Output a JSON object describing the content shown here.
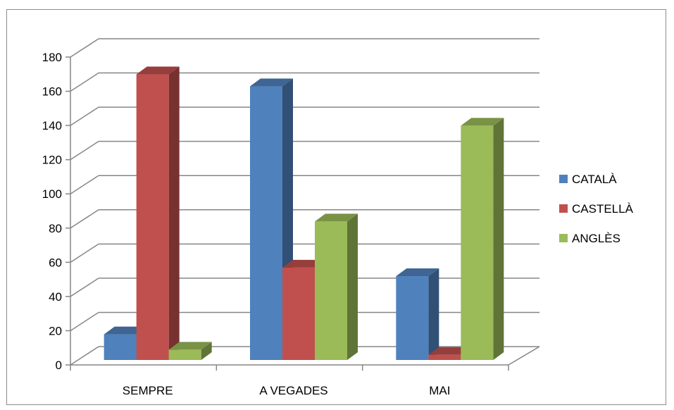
{
  "chart_data": {
    "type": "bar",
    "style": "3d-clustered-column",
    "categories": [
      "SEMPRE",
      "A VEGADES",
      "MAI"
    ],
    "series": [
      {
        "name": "CATALÀ",
        "values": [
          15,
          160,
          49
        ],
        "color": "#4f81bd"
      },
      {
        "name": "CASTELLÀ",
        "values": [
          167,
          54,
          3
        ],
        "color": "#c0504d"
      },
      {
        "name": "ANGLÈS",
        "values": [
          6,
          81,
          137
        ],
        "color": "#9bbb59"
      }
    ],
    "ylim": [
      0,
      180
    ],
    "yticks": [
      0,
      20,
      40,
      60,
      80,
      100,
      120,
      140,
      160,
      180
    ],
    "grid": true,
    "legend_position": "right"
  }
}
